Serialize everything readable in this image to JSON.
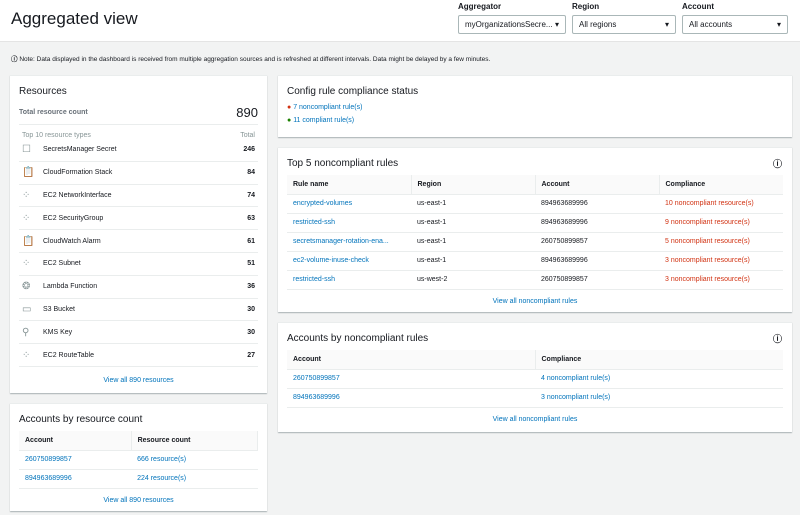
{
  "header": {
    "title": "Aggregated view",
    "filters": [
      {
        "label": "Aggregator",
        "value": "myOrganizationsSecre..."
      },
      {
        "label": "Region",
        "value": "All regions"
      },
      {
        "label": "Account",
        "value": "All accounts"
      }
    ]
  },
  "note": "Note: Data displayed in the dashboard is received from multiple aggregation sources and is refreshed at different intervals. Data might be delayed by a few minutes.",
  "resources": {
    "title": "Resources",
    "total_label": "Total resource count",
    "total": "890",
    "types_header": "Top 10 resource types",
    "total_header": "Total",
    "items": [
      {
        "name": "SecretsManager Secret",
        "count": "246",
        "icon": "secret-icon"
      },
      {
        "name": "CloudFormation Stack",
        "count": "84",
        "icon": "clipboard-icon"
      },
      {
        "name": "EC2 NetworkInterface",
        "count": "74",
        "icon": "network-icon"
      },
      {
        "name": "EC2 SecurityGroup",
        "count": "63",
        "icon": "network-icon"
      },
      {
        "name": "CloudWatch Alarm",
        "count": "61",
        "icon": "clipboard-icon"
      },
      {
        "name": "EC2 Subnet",
        "count": "51",
        "icon": "network-icon"
      },
      {
        "name": "Lambda Function",
        "count": "36",
        "icon": "lambda-icon"
      },
      {
        "name": "S3 Bucket",
        "count": "30",
        "icon": "bucket-icon"
      },
      {
        "name": "KMS Key",
        "count": "30",
        "icon": "key-icon"
      },
      {
        "name": "EC2 RouteTable",
        "count": "27",
        "icon": "network-icon"
      }
    ],
    "view_all": "View all 890 resources"
  },
  "accounts_by_resource": {
    "title": "Accounts by resource count",
    "headers": [
      "Account",
      "Resource count"
    ],
    "rows": [
      [
        "260750899857",
        "666 resource(s)"
      ],
      [
        "894963689996",
        "224 resource(s)"
      ]
    ],
    "view_all": "View all 890 resources"
  },
  "compliance_status": {
    "title": "Config rule compliance status",
    "noncompliant": "7 noncompliant rule(s)",
    "compliant": "11 compliant rule(s)",
    "colors": {
      "noncompliant": "#d13212",
      "compliant": "#1d8102"
    }
  },
  "top5": {
    "title": "Top 5 noncompliant rules",
    "headers": [
      "Rule name",
      "Region",
      "Account",
      "Compliance"
    ],
    "rows": [
      [
        "encrypted-volumes",
        "us-east-1",
        "894963689996",
        "10 noncompliant resource(s)"
      ],
      [
        "restricted-ssh",
        "us-east-1",
        "894963689996",
        "9 noncompliant resource(s)"
      ],
      [
        "secretsmanager-rotation-ena...",
        "us-east-1",
        "260750899857",
        "5 noncompliant resource(s)"
      ],
      [
        "ec2-volume-inuse-check",
        "us-east-1",
        "894963689996",
        "3 noncompliant resource(s)"
      ],
      [
        "restricted-ssh",
        "us-west-2",
        "260750899857",
        "3 noncompliant resource(s)"
      ]
    ],
    "view_all": "View all noncompliant rules"
  },
  "accounts_by_noncompliant": {
    "title": "Accounts by noncompliant rules",
    "headers": [
      "Account",
      "Compliance"
    ],
    "rows": [
      [
        "260750899857",
        "4 noncompliant rule(s)"
      ],
      [
        "894963689996",
        "3 noncompliant rule(s)"
      ]
    ],
    "view_all": "View all noncompliant rules"
  }
}
